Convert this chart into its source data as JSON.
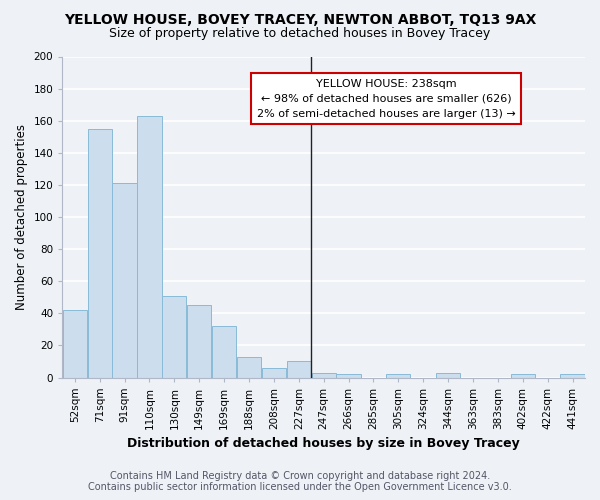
{
  "title": "YELLOW HOUSE, BOVEY TRACEY, NEWTON ABBOT, TQ13 9AX",
  "subtitle": "Size of property relative to detached houses in Bovey Tracey",
  "xlabel": "Distribution of detached houses by size in Bovey Tracey",
  "ylabel": "Number of detached properties",
  "categories": [
    "52sqm",
    "71sqm",
    "91sqm",
    "110sqm",
    "130sqm",
    "149sqm",
    "169sqm",
    "188sqm",
    "208sqm",
    "227sqm",
    "247sqm",
    "266sqm",
    "285sqm",
    "305sqm",
    "324sqm",
    "344sqm",
    "363sqm",
    "383sqm",
    "402sqm",
    "422sqm",
    "441sqm"
  ],
  "values": [
    42,
    155,
    121,
    163,
    51,
    45,
    32,
    13,
    6,
    10,
    3,
    2,
    0,
    2,
    0,
    3,
    0,
    0,
    2,
    0,
    2
  ],
  "bar_color": "#ccdded",
  "bar_edge_color": "#88bbd8",
  "bar_linewidth": 0.7,
  "vline_color": "#222222",
  "annotation_title": "YELLOW HOUSE: 238sqm",
  "annotation_line1": "← 98% of detached houses are smaller (626)",
  "annotation_line2": "2% of semi-detached houses are larger (13) →",
  "annotation_box_facecolor": "#ffffff",
  "annotation_box_edgecolor": "#cc0000",
  "ylim": [
    0,
    200
  ],
  "yticks": [
    0,
    20,
    40,
    60,
    80,
    100,
    120,
    140,
    160,
    180,
    200
  ],
  "background_color": "#eef2f7",
  "grid_color": "#ffffff",
  "footer_line1": "Contains HM Land Registry data © Crown copyright and database right 2024.",
  "footer_line2": "Contains public sector information licensed under the Open Government Licence v3.0.",
  "title_fontsize": 10,
  "subtitle_fontsize": 9,
  "xlabel_fontsize": 9,
  "ylabel_fontsize": 8.5,
  "tick_fontsize": 7.5,
  "footer_fontsize": 7,
  "annotation_fontsize": 8,
  "annotation_title_fontsize": 8.5
}
